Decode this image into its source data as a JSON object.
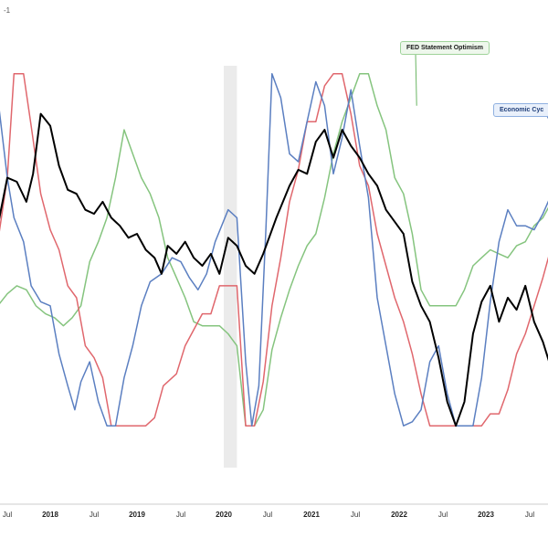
{
  "chart_data": {
    "type": "line",
    "title": "",
    "xlabel": "",
    "ylabel": "",
    "corner_label": "-1",
    "x_ticks": [
      "Jul",
      "2018",
      "Jul",
      "2019",
      "Jul",
      "2020",
      "Jul",
      "2021",
      "Jul",
      "2022",
      "Jul",
      "2023",
      "Jul"
    ],
    "x_tick_is_year": [
      false,
      true,
      false,
      true,
      false,
      true,
      false,
      true,
      false,
      true,
      false,
      true,
      false
    ],
    "x_range": [
      2017.45,
      2024.0
    ],
    "y_range": [
      0,
      100
    ],
    "grid": false,
    "shaded_region": [
      2020.0,
      2020.15
    ],
    "series": [
      {
        "name": "",
        "color": "#000000",
        "width": 2,
        "points": [
          [
            2017.45,
            60
          ],
          [
            2017.55,
            72
          ],
          [
            2017.65,
            71
          ],
          [
            2017.75,
            66
          ],
          [
            2017.82,
            73
          ],
          [
            2017.9,
            88
          ],
          [
            2018.0,
            85
          ],
          [
            2018.1,
            75
          ],
          [
            2018.2,
            69
          ],
          [
            2018.3,
            68
          ],
          [
            2018.4,
            64
          ],
          [
            2018.5,
            63
          ],
          [
            2018.6,
            66
          ],
          [
            2018.7,
            62
          ],
          [
            2018.8,
            60
          ],
          [
            2018.9,
            57
          ],
          [
            2019.0,
            58
          ],
          [
            2019.1,
            54
          ],
          [
            2019.2,
            52
          ],
          [
            2019.28,
            48
          ],
          [
            2019.35,
            55
          ],
          [
            2019.45,
            53
          ],
          [
            2019.55,
            56
          ],
          [
            2019.65,
            52
          ],
          [
            2019.75,
            50
          ],
          [
            2019.85,
            53
          ],
          [
            2019.95,
            48
          ],
          [
            2020.05,
            57
          ],
          [
            2020.15,
            55
          ],
          [
            2020.25,
            50
          ],
          [
            2020.35,
            48
          ],
          [
            2020.45,
            53
          ],
          [
            2020.6,
            62
          ],
          [
            2020.75,
            70
          ],
          [
            2020.85,
            74
          ],
          [
            2020.95,
            73
          ],
          [
            2021.05,
            81
          ],
          [
            2021.15,
            84
          ],
          [
            2021.25,
            77
          ],
          [
            2021.35,
            84
          ],
          [
            2021.45,
            80
          ],
          [
            2021.55,
            77
          ],
          [
            2021.65,
            73
          ],
          [
            2021.75,
            70
          ],
          [
            2021.85,
            64
          ],
          [
            2021.95,
            61
          ],
          [
            2022.05,
            58
          ],
          [
            2022.15,
            46
          ],
          [
            2022.25,
            40
          ],
          [
            2022.35,
            36
          ],
          [
            2022.45,
            27
          ],
          [
            2022.55,
            16
          ],
          [
            2022.65,
            10
          ],
          [
            2022.75,
            16
          ],
          [
            2022.85,
            33
          ],
          [
            2022.95,
            41
          ],
          [
            2023.05,
            45
          ],
          [
            2023.15,
            36
          ],
          [
            2023.25,
            42
          ],
          [
            2023.35,
            39
          ],
          [
            2023.45,
            45
          ],
          [
            2023.55,
            36
          ],
          [
            2023.65,
            31
          ],
          [
            2023.75,
            24
          ],
          [
            2023.85,
            25
          ]
        ]
      },
      {
        "name": "",
        "color": "#e0676d",
        "width": 1.5,
        "points": [
          [
            2017.45,
            56
          ],
          [
            2017.55,
            72
          ],
          [
            2017.62,
            98
          ],
          [
            2017.72,
            98
          ],
          [
            2017.8,
            85
          ],
          [
            2017.9,
            68
          ],
          [
            2018.0,
            59
          ],
          [
            2018.1,
            54
          ],
          [
            2018.2,
            45
          ],
          [
            2018.3,
            42
          ],
          [
            2018.4,
            30
          ],
          [
            2018.5,
            27
          ],
          [
            2018.6,
            22
          ],
          [
            2018.7,
            10
          ],
          [
            2018.8,
            10
          ],
          [
            2018.9,
            10
          ],
          [
            2019.0,
            10
          ],
          [
            2019.1,
            10
          ],
          [
            2019.2,
            12
          ],
          [
            2019.3,
            20
          ],
          [
            2019.45,
            23
          ],
          [
            2019.55,
            30
          ],
          [
            2019.65,
            34
          ],
          [
            2019.75,
            38
          ],
          [
            2019.85,
            38
          ],
          [
            2019.95,
            45
          ],
          [
            2020.05,
            45
          ],
          [
            2020.15,
            45
          ],
          [
            2020.25,
            10
          ],
          [
            2020.35,
            10
          ],
          [
            2020.45,
            21
          ],
          [
            2020.55,
            40
          ],
          [
            2020.65,
            52
          ],
          [
            2020.75,
            66
          ],
          [
            2020.85,
            74
          ],
          [
            2020.95,
            86
          ],
          [
            2021.05,
            86
          ],
          [
            2021.15,
            95
          ],
          [
            2021.25,
            98
          ],
          [
            2021.35,
            98
          ],
          [
            2021.45,
            88
          ],
          [
            2021.55,
            75
          ],
          [
            2021.65,
            70
          ],
          [
            2021.75,
            58
          ],
          [
            2021.85,
            50
          ],
          [
            2021.95,
            42
          ],
          [
            2022.05,
            36
          ],
          [
            2022.15,
            28
          ],
          [
            2022.25,
            18
          ],
          [
            2022.35,
            10
          ],
          [
            2022.45,
            10
          ],
          [
            2022.55,
            10
          ],
          [
            2022.65,
            10
          ],
          [
            2022.75,
            10
          ],
          [
            2022.85,
            10
          ],
          [
            2022.95,
            10
          ],
          [
            2023.05,
            13
          ],
          [
            2023.15,
            13
          ],
          [
            2023.25,
            19
          ],
          [
            2023.35,
            28
          ],
          [
            2023.45,
            33
          ],
          [
            2023.55,
            40
          ],
          [
            2023.65,
            47
          ],
          [
            2023.75,
            55
          ],
          [
            2023.85,
            62
          ]
        ]
      },
      {
        "name": "",
        "color": "#5b7fc1",
        "width": 1.5,
        "points": [
          [
            2017.45,
            92
          ],
          [
            2017.55,
            72
          ],
          [
            2017.62,
            62
          ],
          [
            2017.72,
            56
          ],
          [
            2017.8,
            45
          ],
          [
            2017.9,
            41
          ],
          [
            2018.0,
            40
          ],
          [
            2018.1,
            28
          ],
          [
            2018.2,
            20
          ],
          [
            2018.28,
            14
          ],
          [
            2018.35,
            21
          ],
          [
            2018.45,
            26
          ],
          [
            2018.55,
            16
          ],
          [
            2018.65,
            10
          ],
          [
            2018.75,
            10
          ],
          [
            2018.85,
            22
          ],
          [
            2018.95,
            30
          ],
          [
            2019.05,
            40
          ],
          [
            2019.15,
            46
          ],
          [
            2019.28,
            48
          ],
          [
            2019.4,
            52
          ],
          [
            2019.5,
            51
          ],
          [
            2019.6,
            47
          ],
          [
            2019.7,
            44
          ],
          [
            2019.8,
            48
          ],
          [
            2019.9,
            56
          ],
          [
            2020.05,
            64
          ],
          [
            2020.15,
            62
          ],
          [
            2020.25,
            26
          ],
          [
            2020.32,
            10
          ],
          [
            2020.4,
            20
          ],
          [
            2020.48,
            59
          ],
          [
            2020.55,
            98
          ],
          [
            2020.65,
            92
          ],
          [
            2020.75,
            78
          ],
          [
            2020.85,
            76
          ],
          [
            2020.95,
            86
          ],
          [
            2021.05,
            96
          ],
          [
            2021.15,
            90
          ],
          [
            2021.25,
            73
          ],
          [
            2021.35,
            82
          ],
          [
            2021.45,
            94
          ],
          [
            2021.55,
            80
          ],
          [
            2021.65,
            67
          ],
          [
            2021.75,
            42
          ],
          [
            2021.85,
            30
          ],
          [
            2021.95,
            18
          ],
          [
            2022.05,
            10
          ],
          [
            2022.15,
            11
          ],
          [
            2022.25,
            14
          ],
          [
            2022.35,
            26
          ],
          [
            2022.45,
            30
          ],
          [
            2022.55,
            18
          ],
          [
            2022.65,
            10
          ],
          [
            2022.75,
            10
          ],
          [
            2022.85,
            10
          ],
          [
            2022.95,
            22
          ],
          [
            2023.05,
            41
          ],
          [
            2023.15,
            56
          ],
          [
            2023.25,
            64
          ],
          [
            2023.35,
            60
          ],
          [
            2023.45,
            60
          ],
          [
            2023.55,
            59
          ],
          [
            2023.65,
            63
          ],
          [
            2023.75,
            68
          ],
          [
            2023.85,
            72
          ]
        ]
      },
      {
        "name": "",
        "color": "#85c47e",
        "width": 1.5,
        "points": [
          [
            2017.45,
            40
          ],
          [
            2017.55,
            43
          ],
          [
            2017.65,
            45
          ],
          [
            2017.75,
            44
          ],
          [
            2017.85,
            40
          ],
          [
            2017.95,
            38
          ],
          [
            2018.05,
            37
          ],
          [
            2018.15,
            35
          ],
          [
            2018.25,
            37
          ],
          [
            2018.35,
            40
          ],
          [
            2018.45,
            51
          ],
          [
            2018.55,
            56
          ],
          [
            2018.65,
            62
          ],
          [
            2018.75,
            72
          ],
          [
            2018.85,
            84
          ],
          [
            2018.95,
            78
          ],
          [
            2019.05,
            72
          ],
          [
            2019.15,
            68
          ],
          [
            2019.25,
            62
          ],
          [
            2019.35,
            52
          ],
          [
            2019.45,
            47
          ],
          [
            2019.55,
            42
          ],
          [
            2019.65,
            36
          ],
          [
            2019.75,
            35
          ],
          [
            2019.85,
            35
          ],
          [
            2019.95,
            35
          ],
          [
            2020.05,
            33
          ],
          [
            2020.15,
            30
          ],
          [
            2020.25,
            10
          ],
          [
            2020.35,
            10
          ],
          [
            2020.45,
            14
          ],
          [
            2020.55,
            29
          ],
          [
            2020.65,
            37
          ],
          [
            2020.75,
            44
          ],
          [
            2020.85,
            50
          ],
          [
            2020.95,
            55
          ],
          [
            2021.05,
            58
          ],
          [
            2021.15,
            67
          ],
          [
            2021.25,
            78
          ],
          [
            2021.35,
            86
          ],
          [
            2021.45,
            92
          ],
          [
            2021.55,
            98
          ],
          [
            2021.65,
            98
          ],
          [
            2021.75,
            90
          ],
          [
            2021.85,
            84
          ],
          [
            2021.95,
            72
          ],
          [
            2022.05,
            68
          ],
          [
            2022.15,
            58
          ],
          [
            2022.25,
            44
          ],
          [
            2022.35,
            40
          ],
          [
            2022.45,
            40
          ],
          [
            2022.55,
            40
          ],
          [
            2022.65,
            40
          ],
          [
            2022.75,
            44
          ],
          [
            2022.85,
            50
          ],
          [
            2022.95,
            52
          ],
          [
            2023.05,
            54
          ],
          [
            2023.15,
            53
          ],
          [
            2023.25,
            52
          ],
          [
            2023.35,
            55
          ],
          [
            2023.45,
            56
          ],
          [
            2023.55,
            60
          ],
          [
            2023.65,
            62
          ],
          [
            2023.75,
            66
          ],
          [
            2023.85,
            68
          ]
        ]
      }
    ],
    "annotations": [
      {
        "text": "FED Statement Optimism",
        "color": "#4c9a45",
        "line_color": "#6ab563",
        "target": [
          2022.2,
          90
        ]
      },
      {
        "text": "Economic Cyc",
        "color": "#1f3e7a",
        "line_color": "#5b7fc1",
        "target": [
          2023.9,
          78
        ]
      }
    ]
  }
}
